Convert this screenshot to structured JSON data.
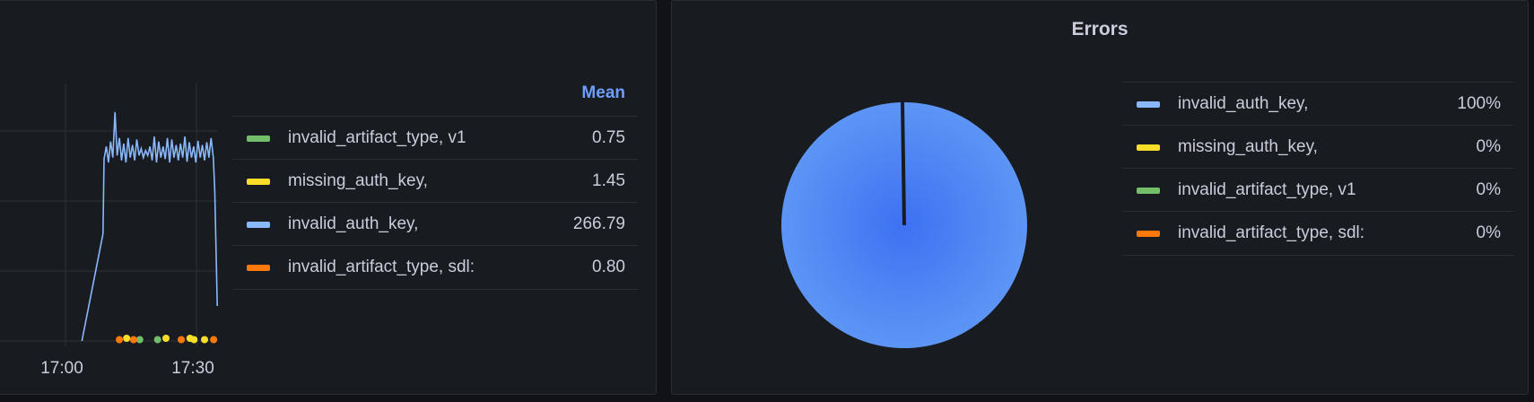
{
  "timeseries_panel": {
    "legend_header": "Mean",
    "legend": [
      {
        "name": "invalid_artifact_type, v1",
        "value": "0.75",
        "color": "#73bf69"
      },
      {
        "name": "missing_auth_key,",
        "value": "1.45",
        "color": "#fade2a"
      },
      {
        "name": "invalid_auth_key,",
        "value": "266.79",
        "color": "#8ab8ff"
      },
      {
        "name": "invalid_artifact_type, sdl:",
        "value": "0.80",
        "color": "#ff780a"
      }
    ]
  },
  "pie_panel": {
    "title": "Errors",
    "legend": [
      {
        "name": "invalid_auth_key,",
        "value": "100%",
        "color": "#8ab8ff"
      },
      {
        "name": "missing_auth_key,",
        "value": "0%",
        "color": "#fade2a"
      },
      {
        "name": "invalid_artifact_type, v1",
        "value": "0%",
        "color": "#73bf69"
      },
      {
        "name": "invalid_artifact_type, sdl:",
        "value": "0%",
        "color": "#ff780a"
      }
    ]
  },
  "chart_data": [
    {
      "type": "line",
      "x_ticks": [
        "17:00",
        "17:30"
      ],
      "y_gridlines": [
        0,
        100,
        200,
        300
      ],
      "grid": true,
      "legend_placement": "right",
      "series": [
        {
          "name": "invalid_auth_key,",
          "color": "#8ab8ff",
          "points": [
            [
              "17:03:45",
              0
            ],
            [
              "17:08:35",
              153
            ],
            [
              "17:08:50",
              260
            ],
            [
              "17:09:20",
              278
            ],
            [
              "17:09:50",
              255
            ],
            [
              "17:10:20",
              285
            ],
            [
              "17:10:50",
              262
            ],
            [
              "17:11:20",
              327
            ],
            [
              "17:11:50",
              265
            ],
            [
              "17:12:20",
              290
            ],
            [
              "17:12:50",
              258
            ],
            [
              "17:13:20",
              282
            ],
            [
              "17:13:50",
              255
            ],
            [
              "17:14:20",
              290
            ],
            [
              "17:14:50",
              262
            ],
            [
              "17:15:20",
              280
            ],
            [
              "17:15:50",
              258
            ],
            [
              "17:16:20",
              288
            ],
            [
              "17:16:50",
              265
            ],
            [
              "17:17:20",
              275
            ],
            [
              "17:17:50",
              262
            ],
            [
              "17:18:20",
              272
            ],
            [
              "17:18:50",
              265
            ],
            [
              "17:19:20",
              278
            ],
            [
              "17:19:50",
              258
            ],
            [
              "17:20:20",
              292
            ],
            [
              "17:20:50",
              255
            ],
            [
              "17:21:20",
              285
            ],
            [
              "17:21:50",
              262
            ],
            [
              "17:22:20",
              278
            ],
            [
              "17:22:50",
              260
            ],
            [
              "17:23:20",
              290
            ],
            [
              "17:23:50",
              255
            ],
            [
              "17:24:20",
              288
            ],
            [
              "17:24:50",
              262
            ],
            [
              "17:25:20",
              280
            ],
            [
              "17:25:50",
              258
            ],
            [
              "17:26:20",
              282
            ],
            [
              "17:26:50",
              262
            ],
            [
              "17:27:20",
              292
            ],
            [
              "17:27:50",
              256
            ],
            [
              "17:28:20",
              284
            ],
            [
              "17:28:50",
              262
            ],
            [
              "17:29:20",
              278
            ],
            [
              "17:29:50",
              255
            ],
            [
              "17:30:20",
              286
            ],
            [
              "17:30:50",
              262
            ],
            [
              "17:31:20",
              280
            ],
            [
              "17:31:50",
              258
            ],
            [
              "17:32:20",
              284
            ],
            [
              "17:32:50",
              262
            ],
            [
              "17:33:20",
              290
            ],
            [
              "17:33:50",
              262
            ],
            [
              "17:34:10",
              215
            ],
            [
              "17:34:45",
              50
            ]
          ]
        },
        {
          "name": "invalid_artifact_type, v1",
          "color": "#73bf69",
          "points": [
            [
              "17:17:00",
              1
            ],
            [
              "17:21:05",
              1
            ]
          ]
        },
        {
          "name": "missing_auth_key,",
          "color": "#fade2a",
          "points": [
            [
              "17:14:00",
              2
            ],
            [
              "17:23:00",
              2
            ],
            [
              "17:28:30",
              2
            ],
            [
              "17:29:25",
              1
            ],
            [
              "17:31:50",
              1
            ]
          ]
        },
        {
          "name": "invalid_artifact_type, sdl:",
          "color": "#ff780a",
          "points": [
            [
              "17:12:20",
              1
            ],
            [
              "17:15:35",
              1
            ],
            [
              "17:26:30",
              1
            ],
            [
              "17:33:55",
              1
            ]
          ]
        }
      ]
    },
    {
      "type": "pie",
      "title": "Errors",
      "slices": [
        {
          "label": "invalid_auth_key,",
          "value": 100,
          "color": "#5794f2"
        },
        {
          "label": "missing_auth_key,",
          "value": 0,
          "color": "#fade2a"
        },
        {
          "label": "invalid_artifact_type, v1",
          "value": 0,
          "color": "#73bf69"
        },
        {
          "label": "invalid_artifact_type, sdl:",
          "value": 0,
          "color": "#ff780a"
        }
      ],
      "legend_placement": "right"
    }
  ]
}
